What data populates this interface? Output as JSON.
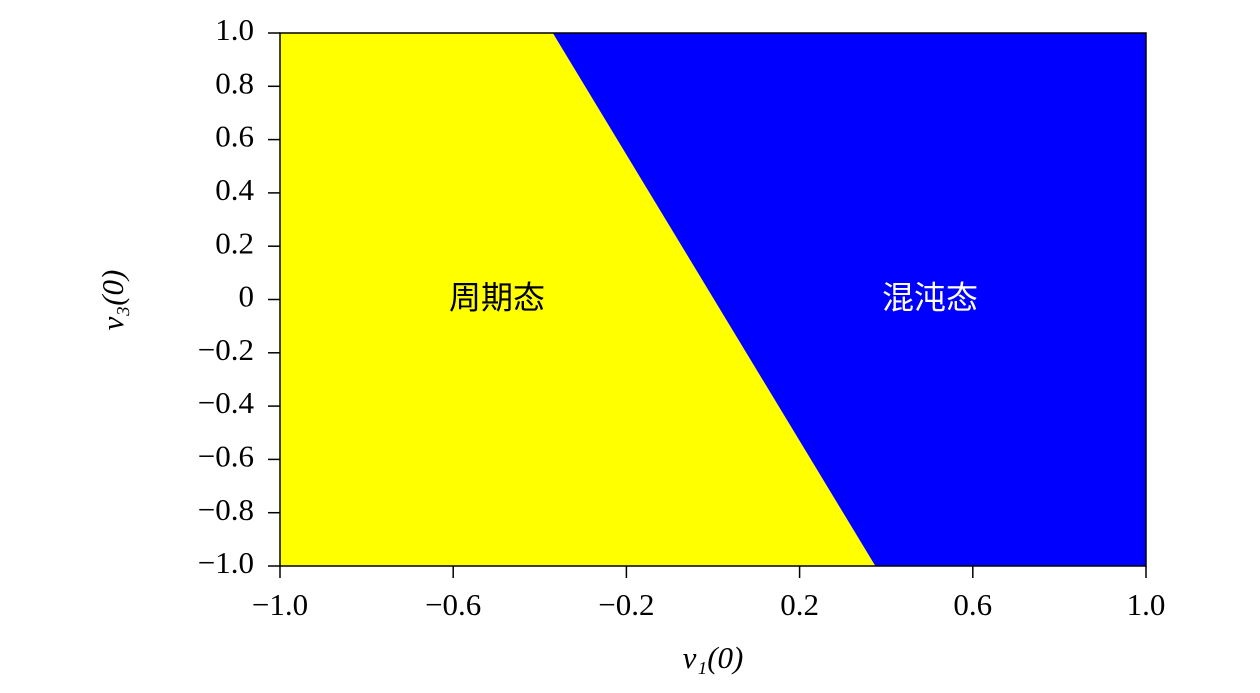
{
  "chart_data": {
    "type": "region",
    "x_label": "v₁(0)",
    "y_label": "v₃(0)",
    "boundary": {
      "x": [
        -0.37,
        0.375
      ],
      "y": [
        1.0,
        -1.0
      ]
    },
    "series": [
      {
        "name": "周期态",
        "color": "#ffff00",
        "side": "left",
        "label_color": "#000000"
      },
      {
        "name": "混沌态",
        "color": "#0000ff",
        "side": "right",
        "label_color": "#ffffff"
      }
    ],
    "xlim": [
      -1.0,
      1.0
    ],
    "ylim": [
      -1.0,
      1.0
    ],
    "xticks": [
      {
        "value": -1.0,
        "label": "−1.0"
      },
      {
        "value": -0.6,
        "label": "−0.6"
      },
      {
        "value": -0.2,
        "label": "−0.2"
      },
      0.2,
      0.6,
      {
        "value": 1.0,
        "label": "1.0"
      }
    ],
    "yticks": [
      {
        "value": -1.0,
        "label": "−1.0"
      },
      {
        "value": -0.8,
        "label": "−0.8"
      },
      {
        "value": -0.6,
        "label": "−0.6"
      },
      {
        "value": -0.4,
        "label": "−0.4"
      },
      {
        "value": -0.2,
        "label": "−0.2"
      },
      0,
      0.2,
      0.4,
      0.6,
      0.8,
      {
        "value": 1.0,
        "label": "1.0"
      }
    ]
  }
}
